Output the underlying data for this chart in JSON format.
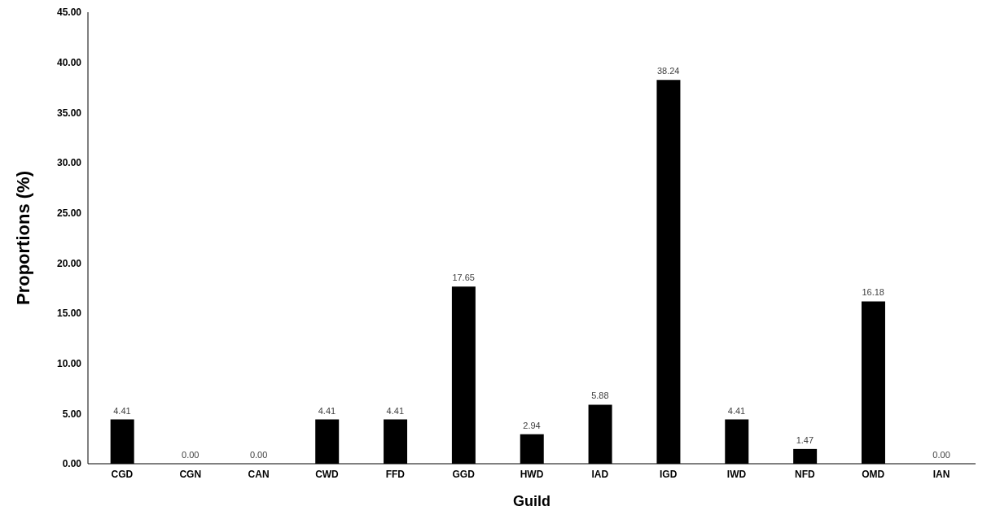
{
  "chart_data": {
    "type": "bar",
    "xlabel": "Guild",
    "ylabel": "Proportions (%)",
    "categories": [
      "CGD",
      "CGN",
      "CAN",
      "CWD",
      "FFD",
      "GGD",
      "HWD",
      "IAD",
      "IGD",
      "IWD",
      "NFD",
      "OMD",
      "IAN"
    ],
    "series": [
      {
        "color": "#000000",
        "values": [
          4.41,
          0,
          0,
          4.41,
          4.41,
          17.65,
          2.94,
          5.88,
          38.24,
          4.41,
          1.47,
          16.18,
          0
        ],
        "value_labels": [
          "4.41",
          "0.00",
          "0.00",
          "4.41",
          "4.41",
          "17.65",
          "2.94",
          "5.88",
          "38.24",
          "4.41",
          "1.47",
          "16.18",
          "0.00"
        ]
      }
    ],
    "ylim": [
      0,
      45
    ],
    "yticks": [
      {
        "value": 0,
        "label": "0.00"
      },
      {
        "value": 5,
        "label": "5.00"
      },
      {
        "value": 10,
        "label": "10.00"
      },
      {
        "value": 15,
        "label": "15.00"
      },
      {
        "value": 20,
        "label": "20.00"
      },
      {
        "value": 25,
        "label": "25.00"
      },
      {
        "value": 30,
        "label": "30.00"
      },
      {
        "value": 35,
        "label": "35.00"
      },
      {
        "value": 40,
        "label": "40.00"
      },
      {
        "value": 45,
        "label": "45.00"
      }
    ],
    "grid": false,
    "legend": false
  }
}
